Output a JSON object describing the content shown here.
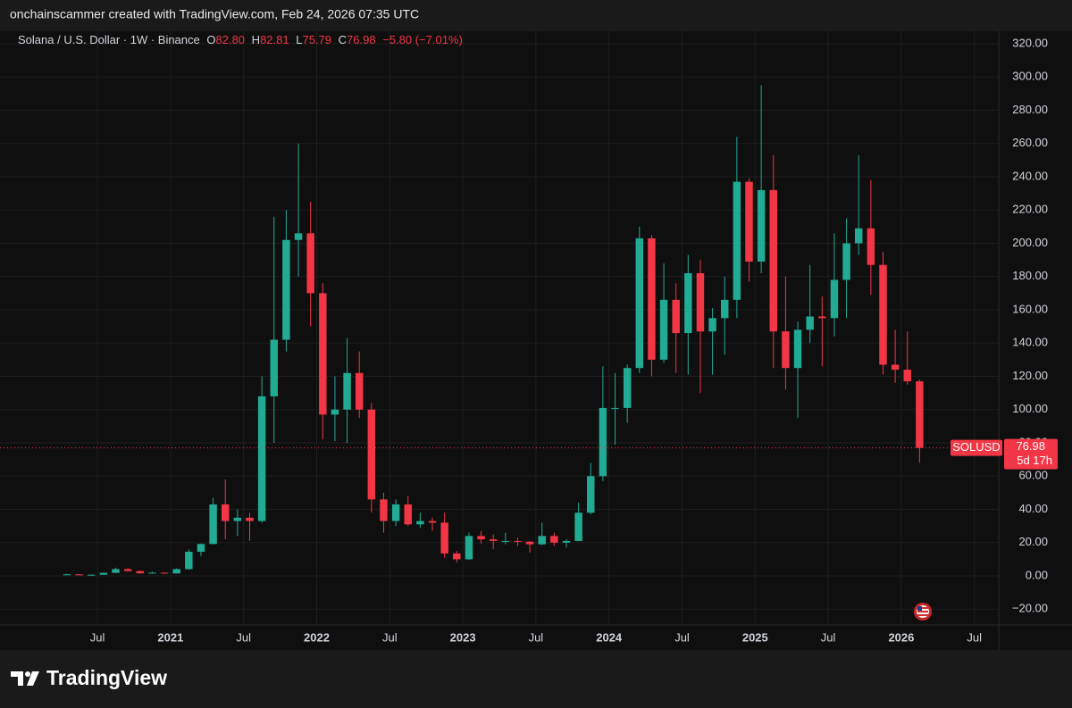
{
  "header": {
    "text": "onchainscammer created with TradingView.com, Feb 24, 2026 07:35 UTC"
  },
  "legend": {
    "symbol": "Solana / U.S. Dollar · 1W · Binance",
    "items": [
      {
        "key": "O",
        "value": "82.80"
      },
      {
        "key": "H",
        "value": "82.81"
      },
      {
        "key": "L",
        "value": "75.79"
      },
      {
        "key": "C",
        "value": "76.98"
      }
    ],
    "change": "−5.80 (−7.01%)"
  },
  "footer": {
    "brand": "TradingView"
  },
  "chart_data": {
    "type": "candlestick",
    "up_color": "#22ab94",
    "down_color": "#f23645",
    "grid": true,
    "x": [
      "2020-04",
      "2020-05",
      "2020-06",
      "2020-07",
      "2020-08",
      "2020-09",
      "2020-10",
      "2020-11",
      "2020-12",
      "2021-01",
      "2021-02",
      "2021-03",
      "2021-04",
      "2021-05",
      "2021-06",
      "2021-07",
      "2021-08",
      "2021-09",
      "2021-10",
      "2021-11",
      "2021-12",
      "2022-01",
      "2022-02",
      "2022-03",
      "2022-04",
      "2022-05",
      "2022-06",
      "2022-07",
      "2022-08",
      "2022-09",
      "2022-10",
      "2022-11",
      "2022-12",
      "2023-01",
      "2023-02",
      "2023-03",
      "2023-04",
      "2023-05",
      "2023-06",
      "2023-07",
      "2023-08",
      "2023-09",
      "2023-10",
      "2023-11",
      "2023-12",
      "2024-01",
      "2024-02",
      "2024-03",
      "2024-04",
      "2024-05",
      "2024-06",
      "2024-07",
      "2024-08",
      "2024-09",
      "2024-10",
      "2024-11",
      "2024-12",
      "2025-01",
      "2025-02",
      "2025-03",
      "2025-04",
      "2025-05",
      "2025-06",
      "2025-07",
      "2025-08",
      "2025-09",
      "2025-10",
      "2025-11",
      "2025-12",
      "2026-01",
      "2026-02"
    ],
    "open": [
      0.7,
      0.95,
      0.63,
      0.72,
      1.85,
      4.1,
      2.9,
      1.55,
      1.95,
      1.5,
      4.1,
      14.5,
      19.2,
      43,
      33,
      35,
      33,
      108,
      142,
      202,
      206,
      170,
      97,
      100,
      122,
      100,
      46,
      33,
      43,
      31,
      33,
      32,
      13.5,
      10,
      24,
      22,
      21,
      21,
      20.6,
      19,
      24,
      20,
      21,
      38,
      60,
      101,
      101,
      125,
      203,
      130,
      166,
      146,
      182,
      147,
      155,
      166,
      237,
      189,
      232,
      147,
      125,
      148,
      156,
      155,
      178,
      200,
      209,
      187,
      127,
      124,
      117
    ],
    "high": [
      1.3,
      1.0,
      0.9,
      1.95,
      4.95,
      4.7,
      3.3,
      2.6,
      2.1,
      4.5,
      16,
      19.5,
      47,
      58,
      40,
      38,
      120,
      216,
      220,
      260,
      225,
      176,
      120,
      143,
      135,
      104,
      50,
      46,
      48,
      38,
      35,
      38,
      15,
      26,
      27,
      25,
      26,
      23,
      21,
      32,
      26,
      22,
      44,
      68,
      126,
      122,
      127,
      210,
      205,
      188,
      176,
      193,
      190,
      161,
      180,
      264,
      239,
      295,
      253,
      180,
      153,
      187,
      168,
      206,
      215,
      253,
      238,
      195,
      148,
      147,
      118
    ],
    "low": [
      0.5,
      0.5,
      0.55,
      0.65,
      1.8,
      2.6,
      1.5,
      1.4,
      1.2,
      1.4,
      3.8,
      12,
      19,
      22,
      24,
      21,
      32,
      80,
      135,
      180,
      150,
      82,
      81,
      80,
      95,
      38,
      26,
      30,
      30,
      29,
      27,
      11,
      8,
      9.6,
      19.5,
      16,
      19,
      18,
      14,
      18.5,
      18,
      17,
      21,
      37,
      57,
      79,
      92,
      122,
      120,
      128,
      122,
      121,
      110,
      121,
      133,
      155,
      177,
      182,
      125,
      112,
      95,
      140,
      126,
      144,
      155,
      193,
      169,
      121,
      116,
      115,
      68
    ],
    "close": [
      0.95,
      0.63,
      0.72,
      1.85,
      4.1,
      2.9,
      1.55,
      1.95,
      1.5,
      4.1,
      14.5,
      19.2,
      43,
      33,
      35,
      33,
      108,
      142,
      202,
      206,
      170,
      97,
      100,
      122,
      100,
      46,
      33,
      43,
      31,
      33,
      32,
      13.5,
      10,
      24,
      22,
      21,
      21,
      20.6,
      19,
      24,
      20,
      21,
      38,
      60,
      101,
      101,
      125,
      203,
      130,
      166,
      146,
      182,
      147,
      155,
      166,
      237,
      189,
      232,
      147,
      125,
      148,
      156,
      155,
      178,
      200,
      209,
      187,
      127,
      124,
      117,
      76.98
    ],
    "xlim": [
      "2019-11",
      "2026-09"
    ],
    "xticks": [
      {
        "value": "2020-07",
        "label": "Jul"
      },
      {
        "value": "2021-01",
        "label": "2021"
      },
      {
        "value": "2021-07",
        "label": "Jul"
      },
      {
        "value": "2022-01",
        "label": "2022"
      },
      {
        "value": "2022-07",
        "label": "Jul"
      },
      {
        "value": "2023-01",
        "label": "2023"
      },
      {
        "value": "2023-07",
        "label": "Jul"
      },
      {
        "value": "2024-01",
        "label": "2024"
      },
      {
        "value": "2024-07",
        "label": "Jul"
      },
      {
        "value": "2025-01",
        "label": "2025"
      },
      {
        "value": "2025-07",
        "label": "Jul"
      },
      {
        "value": "2026-01",
        "label": "2026"
      },
      {
        "value": "2026-07",
        "label": "Jul"
      }
    ],
    "ylim": [
      -29.5,
      327.5
    ],
    "yticks": [
      {
        "value": 320,
        "label": "320.00"
      },
      {
        "value": 300,
        "label": "300.00"
      },
      {
        "value": 280,
        "label": "280.00"
      },
      {
        "value": 260,
        "label": "260.00"
      },
      {
        "value": 240,
        "label": "240.00"
      },
      {
        "value": 220,
        "label": "220.00"
      },
      {
        "value": 200,
        "label": "200.00"
      },
      {
        "value": 180,
        "label": "180.00"
      },
      {
        "value": 160,
        "label": "160.00"
      },
      {
        "value": 140,
        "label": "140.00"
      },
      {
        "value": 120,
        "label": "120.00"
      },
      {
        "value": 100,
        "label": "100.00"
      },
      {
        "value": 80,
        "label": "80.00"
      },
      {
        "value": 60,
        "label": "60.00"
      },
      {
        "value": 40,
        "label": "40.00"
      },
      {
        "value": 20,
        "label": "20.00"
      },
      {
        "value": 0,
        "label": "0.00"
      },
      {
        "value": -20,
        "label": "−20.00"
      }
    ],
    "last_price": {
      "value": 76.98,
      "symbol": "SOLUSD",
      "countdown": "5d 17h"
    }
  }
}
